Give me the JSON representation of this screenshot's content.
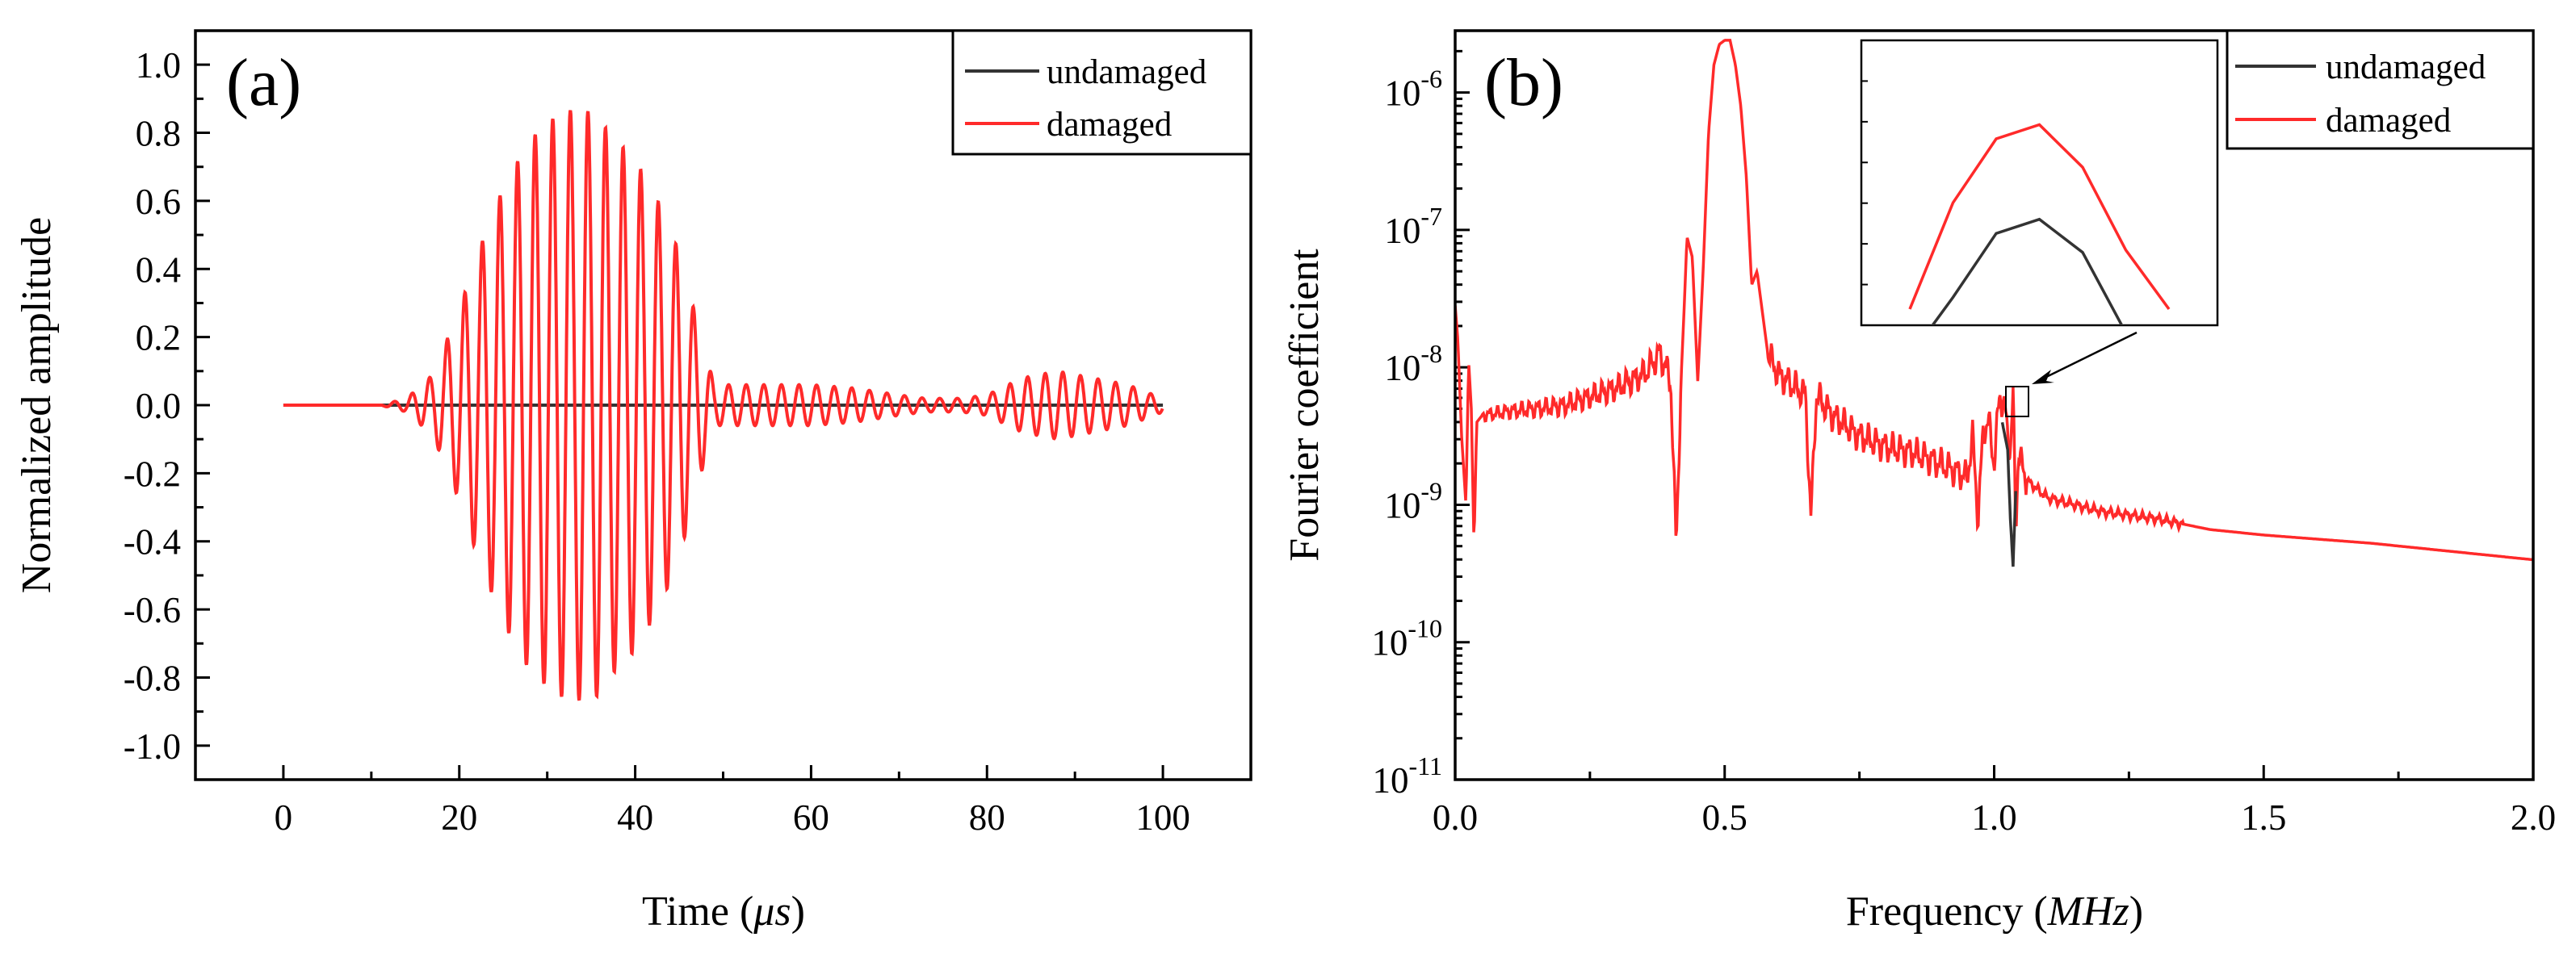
{
  "colors": {
    "undamaged": "#333333",
    "damaged": "#ff2a2a",
    "axis": "#000000"
  },
  "chart_data": [
    {
      "type": "line",
      "panel_label": "(a)",
      "title": "",
      "xlabel": "Time (μs)",
      "xlabel_parts": {
        "prefix": "Time (",
        "unit": "μs",
        "suffix": ")"
      },
      "ylabel": "Normalized amplitude",
      "xlim": [
        -10,
        110
      ],
      "ylim": [
        -1.1,
        1.1
      ],
      "xticks": [
        0,
        20,
        40,
        60,
        80,
        100
      ],
      "xtick_labels": [
        "0",
        "20",
        "40",
        "60",
        "80",
        "100"
      ],
      "yticks": [
        -1.0,
        -0.8,
        -0.6,
        -0.4,
        -0.2,
        0.0,
        0.2,
        0.4,
        0.6,
        0.8,
        1.0
      ],
      "ytick_labels": [
        "-1.0",
        "-0.8",
        "-0.6",
        "-0.4",
        "-0.2",
        "0.0",
        "0.2",
        "0.4",
        "0.6",
        "0.8",
        "1.0"
      ],
      "legend": [
        "undamaged",
        "damaged"
      ],
      "legend_position": "top-right",
      "series": [
        {
          "name": "undamaged",
          "color": "#333333",
          "x": [
            0,
            100
          ],
          "y": [
            0,
            0
          ]
        },
        {
          "name": "damaged",
          "color": "#ff2a2a",
          "note": "tone-burst: 0.5 MHz carrier; envelope (time μs, peak amplitude)",
          "carrier_freq_mhz": 0.5,
          "x": [
            0,
            11,
            14,
            17,
            20,
            22,
            25,
            28,
            31,
            33,
            35.5,
            37,
            40,
            43,
            45,
            47.5,
            49,
            51,
            55,
            60,
            65,
            70,
            73,
            77,
            80,
            84,
            88,
            92,
            96,
            100
          ],
          "y": [
            0,
            0,
            0.02,
            0.09,
            0.28,
            0.44,
            0.64,
            0.78,
            0.85,
            0.87,
            0.86,
            0.8,
            0.72,
            0.58,
            0.45,
            0.2,
            0.06,
            0.06,
            0.06,
            0.06,
            0.05,
            0.03,
            0.02,
            0.02,
            0.03,
            0.08,
            0.1,
            0.08,
            0.06,
            0.02
          ]
        }
      ]
    },
    {
      "type": "line",
      "panel_label": "(b)",
      "title": "",
      "xlabel": "Frequency (MHz)",
      "xlabel_parts": {
        "prefix": "Frequency (",
        "unit": "MHz",
        "suffix": ")"
      },
      "ylabel": "Fourier coefficient",
      "yscale": "log",
      "xlim": [
        0,
        2.0
      ],
      "ylim_log10": [
        -11,
        -5.55
      ],
      "xticks": [
        0.0,
        0.5,
        1.0,
        1.5,
        2.0
      ],
      "xtick_labels": [
        "0.0",
        "0.5",
        "1.0",
        "1.5",
        "2.0"
      ],
      "ytick_exponents": [
        -11,
        -10,
        -9,
        -8,
        -7,
        -6
      ],
      "ytick_base": "10",
      "legend": [
        "undamaged",
        "damaged"
      ],
      "legend_position": "top-right",
      "series": [
        {
          "name": "damaged",
          "color": "#ff2a2a",
          "x": [
            0,
            0.005,
            0.012,
            0.02,
            0.025,
            0.03,
            0.035,
            0.04,
            0.05,
            0.1,
            0.2,
            0.3,
            0.35,
            0.38,
            0.4,
            0.41,
            0.42,
            0.425,
            0.43,
            0.44,
            0.45,
            0.46,
            0.47,
            0.48,
            0.49,
            0.5,
            0.51,
            0.52,
            0.53,
            0.54,
            0.55,
            0.56,
            0.57,
            0.58,
            0.6,
            0.65,
            0.66,
            0.67,
            0.7,
            0.75,
            0.8,
            0.85,
            0.9,
            0.95,
            0.96,
            0.97,
            0.98,
            0.99,
            1.0,
            1.01,
            1.02,
            1.025,
            1.03,
            1.035,
            1.04,
            1.045,
            1.05,
            1.06,
            1.1,
            1.2,
            1.3,
            1.4,
            1.5,
            1.6,
            1.7,
            1.8,
            1.9,
            2.0
          ],
          "y_log10": [
            -7.55,
            -7.8,
            -8.5,
            -9.0,
            -7.95,
            -8.3,
            -9.3,
            -8.4,
            -8.35,
            -8.32,
            -8.28,
            -8.15,
            -8.05,
            -7.9,
            -8.1,
            -9.3,
            -8.0,
            -7.55,
            -7.05,
            -7.2,
            -8.1,
            -7.3,
            -6.3,
            -5.8,
            -5.65,
            -5.62,
            -5.62,
            -5.8,
            -6.1,
            -6.6,
            -7.4,
            -7.3,
            -7.6,
            -7.9,
            -8.05,
            -8.2,
            -9.1,
            -8.2,
            -8.35,
            -8.5,
            -8.58,
            -8.62,
            -8.7,
            -8.8,
            -8.5,
            -9.1,
            -8.45,
            -8.4,
            -8.7,
            -8.2,
            -8.3,
            -8.5,
            -8.6,
            -8.2,
            -9.2,
            -8.6,
            -8.7,
            -8.82,
            -8.95,
            -9.05,
            -9.1,
            -9.18,
            -9.22,
            -9.25,
            -9.28,
            -9.32,
            -9.36,
            -9.4
          ]
        },
        {
          "name": "undamaged",
          "color": "#333333",
          "x": [
            1.015,
            1.02,
            1.025,
            1.03,
            1.035,
            1.04
          ],
          "y_log10": [
            -8.4,
            -8.5,
            -8.6,
            -9.1,
            -9.45,
            -8.9
          ]
        }
      ],
      "inset": {
        "description": "zoom of peak near 1.02 MHz",
        "x": [
          0,
          1,
          2,
          3,
          4,
          5,
          6
        ],
        "series": [
          {
            "name": "damaged",
            "color": "#ff2a2a",
            "y": [
              0.0,
              0.45,
              0.72,
              0.78,
              0.6,
              0.25,
              0.0
            ]
          },
          {
            "name": "undamaged",
            "color": "#333333",
            "y": [
              -0.2,
              0.05,
              0.32,
              0.38,
              0.24,
              -0.1,
              -0.3
            ]
          }
        ]
      }
    }
  ]
}
